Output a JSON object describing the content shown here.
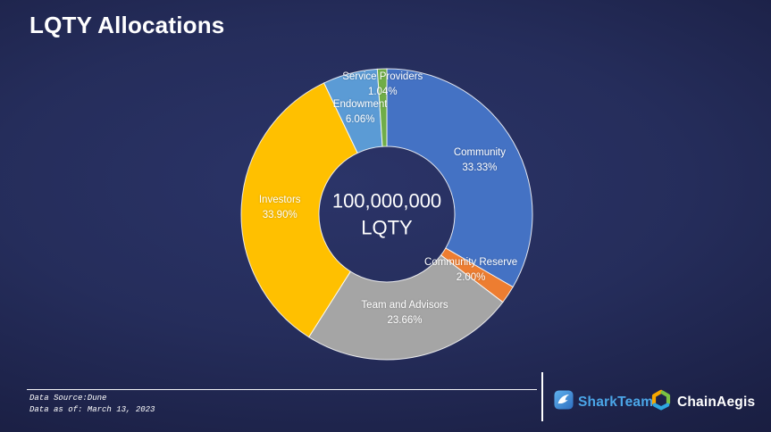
{
  "title": "LQTY Allocations",
  "chart_data": {
    "type": "pie",
    "subtype": "donut",
    "title": "LQTY Allocations",
    "direction": "clockwise",
    "start_angle_deg": 0,
    "center_label": [
      "100,000,000",
      "LQTY"
    ],
    "slices": [
      {
        "label": "Community",
        "value": 33.33,
        "color": "#4472C4",
        "label_r": 120
      },
      {
        "label": "Community Reserve",
        "value": 2.0,
        "color": "#ED7D31",
        "label_r": 113
      },
      {
        "label": "Team and Advisors",
        "value": 23.66,
        "color": "#A5A5A5",
        "label_r": 113
      },
      {
        "label": "Investors",
        "value": 33.9,
        "color": "#FFC000",
        "label_r": 120
      },
      {
        "label": "Endowment",
        "value": 6.06,
        "color": "#5B9BD5",
        "label_r": 118
      },
      {
        "label": "Service Providers",
        "value": 1.04,
        "color": "#70AD47",
        "label_r": 145
      }
    ]
  },
  "footer": {
    "source": "Data Source:Dune",
    "as_of": "Data as of: March 13, 2023"
  },
  "logos": {
    "sharkteam": {
      "name": "SharkTeam",
      "color": "#4BA6E8"
    },
    "chainaegis": {
      "name": "ChainAegis",
      "color": "#FFFFFF"
    }
  }
}
